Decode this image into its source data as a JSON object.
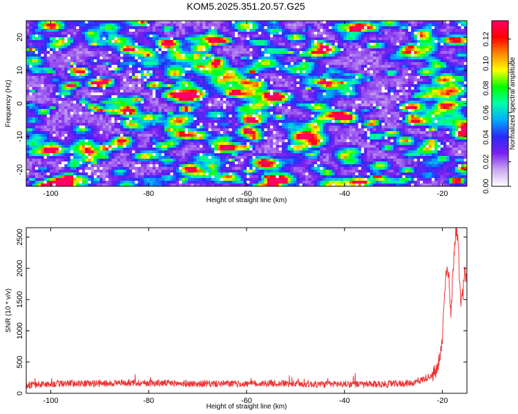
{
  "title": "KOM5.2025.351.20.57.G25",
  "chart_data": [
    {
      "type": "heatmap",
      "xlabel": "Height of straight line (km)",
      "ylabel": "Frequency (Hz)",
      "xlim": [
        -105,
        -15
      ],
      "ylim": [
        -25,
        25
      ],
      "x_ticks": [
        -100,
        -80,
        -60,
        -40,
        -20
      ],
      "y_ticks": [
        20,
        10,
        0,
        -10,
        -20
      ],
      "colorbar": {
        "label": "Normalized spectral amplitude",
        "range": [
          0.0,
          0.135
        ],
        "ticks": [
          "0.00",
          "0.02",
          "0.04",
          "0.06",
          "0.08",
          "0.10",
          "0.12"
        ],
        "colormap": [
          "#ffffff",
          "#c8a8f0",
          "#7a20f0",
          "#2a2af8",
          "#00aaff",
          "#00ffaa",
          "#00ff00",
          "#ffff00",
          "#ff8800",
          "#ff0000",
          "#ff0066"
        ]
      },
      "value_range_note": "",
      "grid": false
    },
    {
      "type": "line",
      "xlabel": "Height of straight line (km)",
      "ylabel": "SNR (10 * v/v)",
      "xlim": [
        -105,
        -15
      ],
      "ylim": [
        0,
        2650
      ],
      "x_ticks": [
        -100,
        -80,
        -60,
        -40,
        -20
      ],
      "y_ticks": [
        0,
        500,
        1000,
        1500,
        2000,
        2500
      ],
      "color": "#ee3333",
      "series": [
        {
          "x": [
            -105,
            -100,
            -95,
            -90,
            -85,
            -80,
            -75,
            -70,
            -65,
            -60,
            -55,
            -50,
            -45,
            -40,
            -35,
            -30,
            -26,
            -24,
            -22,
            -21,
            -20.5,
            -20,
            -19.5,
            -19,
            -18.7,
            -18.3,
            -18,
            -17.6,
            -17.2,
            -16.8,
            -16.4,
            -16,
            -15.5
          ],
          "values": [
            130,
            150,
            160,
            155,
            170,
            165,
            160,
            150,
            155,
            150,
            160,
            150,
            145,
            150,
            140,
            150,
            165,
            220,
            300,
            380,
            550,
            900,
            1700,
            2100,
            1900,
            1200,
            1700,
            2300,
            2650,
            2400,
            1600,
            1400,
            1900
          ]
        }
      ],
      "grid": false
    }
  ]
}
